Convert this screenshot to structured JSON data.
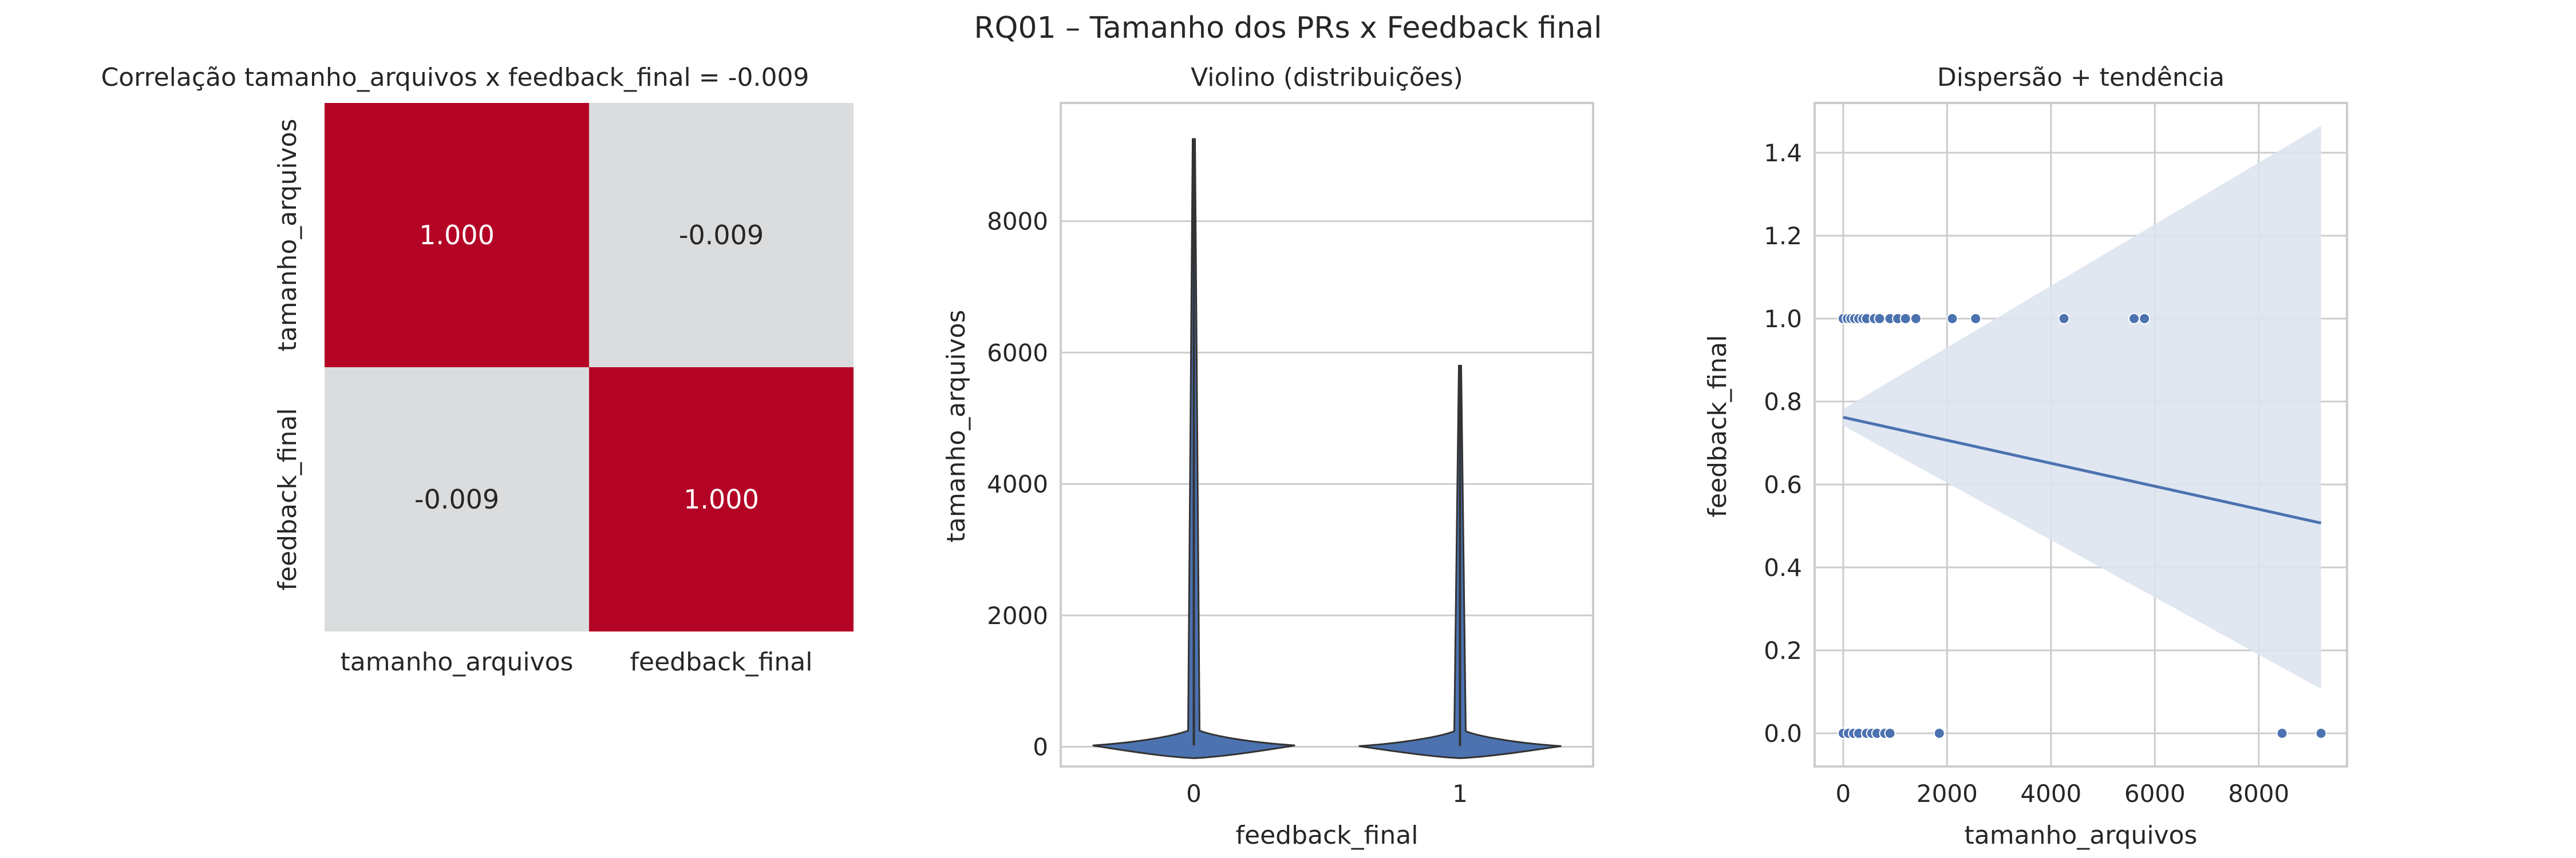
{
  "title": "RQ01 – Tamanho dos PRs x Feedback final",
  "colors": {
    "background": "#ffffff",
    "text": "#262626",
    "grid": "#cccccc",
    "heatmap_high": "#b40426",
    "heatmap_neutral": "#dcdddd",
    "series": "#4c72b0",
    "ci_band": "#dde4f0",
    "violin_edge": "#333333"
  },
  "chart_data": [
    {
      "type": "heatmap",
      "title": "Correlação tamanho_arquivos x feedback_final = -0.009",
      "rows": [
        "tamanho_arquivos",
        "feedback_final"
      ],
      "cols": [
        "tamanho_arquivos",
        "feedback_final"
      ],
      "values": [
        [
          1.0,
          -0.009
        ],
        [
          -0.009,
          1.0
        ]
      ],
      "labels": [
        [
          "1.000",
          "-0.009"
        ],
        [
          "-0.009",
          "1.000"
        ]
      ],
      "colormap": "coolwarm",
      "vmin": -1,
      "vmax": 1
    },
    {
      "type": "violin",
      "title": "Violino (distribuições)",
      "xlabel": "feedback_final",
      "ylabel": "tamanho_arquivos",
      "categories": [
        "0",
        "1"
      ],
      "ylim": [
        -300,
        9800
      ],
      "yticks": [
        0,
        2000,
        4000,
        6000,
        8000
      ],
      "grid": true,
      "distributions": [
        {
          "category": "0",
          "min": -10,
          "max": 9250,
          "bulk_center": 20,
          "bulk_halfwidth": 0.38
        },
        {
          "category": "1",
          "min": -10,
          "max": 5800,
          "bulk_center": 10,
          "bulk_halfwidth": 0.38
        }
      ]
    },
    {
      "type": "scatter",
      "title": "Dispersão + tendência",
      "xlabel": "tamanho_arquivos",
      "ylabel": "feedback_final",
      "xlim": [
        -550,
        9700
      ],
      "ylim": [
        -0.08,
        1.52
      ],
      "xticks": [
        0,
        2000,
        4000,
        6000,
        8000
      ],
      "yticks": [
        0.0,
        0.2,
        0.4,
        0.6,
        0.8,
        1.0,
        1.2,
        1.4
      ],
      "ytick_labels": [
        "0.0",
        "0.2",
        "0.4",
        "0.6",
        "0.8",
        "1.0",
        "1.2",
        "1.4"
      ],
      "grid": true,
      "points": [
        [
          0,
          1
        ],
        [
          80,
          1
        ],
        [
          150,
          1
        ],
        [
          220,
          1
        ],
        [
          300,
          1
        ],
        [
          380,
          1
        ],
        [
          450,
          1
        ],
        [
          600,
          1
        ],
        [
          700,
          1
        ],
        [
          900,
          1
        ],
        [
          1050,
          1
        ],
        [
          1200,
          1
        ],
        [
          1400,
          1
        ],
        [
          2100,
          1
        ],
        [
          2550,
          1
        ],
        [
          4250,
          1
        ],
        [
          5600,
          1
        ],
        [
          5800,
          1
        ],
        [
          0,
          0
        ],
        [
          100,
          0
        ],
        [
          200,
          0
        ],
        [
          300,
          0
        ],
        [
          450,
          0
        ],
        [
          550,
          0
        ],
        [
          650,
          0
        ],
        [
          800,
          0
        ],
        [
          900,
          0
        ],
        [
          1850,
          0
        ],
        [
          8450,
          0
        ],
        [
          9200,
          0
        ]
      ],
      "trend": {
        "x": [
          0,
          9200
        ],
        "y": [
          0.762,
          0.507
        ]
      },
      "ci": {
        "x": [
          0,
          9200
        ],
        "upper": [
          0.782,
          1.465
        ],
        "lower": [
          0.742,
          0.107
        ]
      }
    }
  ]
}
